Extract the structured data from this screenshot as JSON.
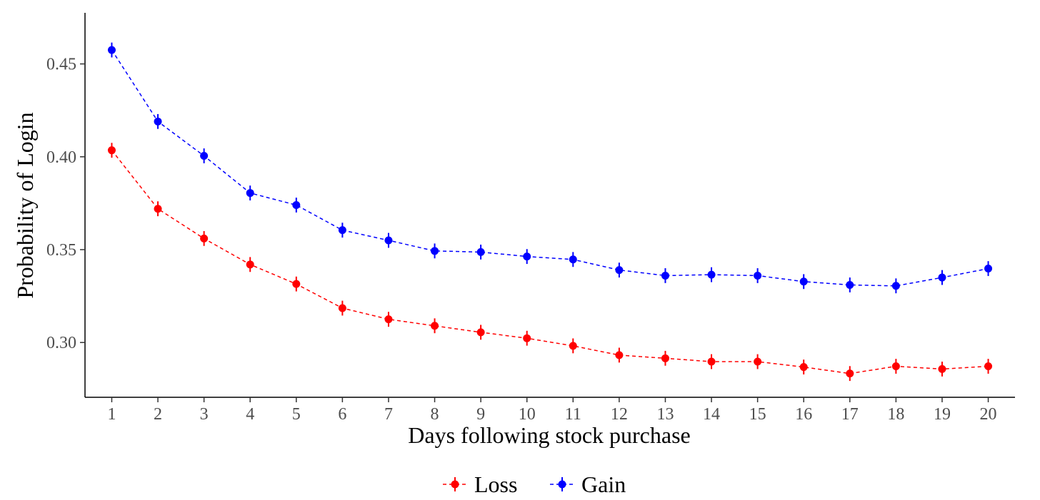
{
  "chart_data": {
    "type": "line",
    "title": "",
    "xlabel": "Days following stock purchase",
    "ylabel": "Probability of Login",
    "x": [
      1,
      2,
      3,
      4,
      5,
      6,
      7,
      8,
      9,
      10,
      11,
      12,
      13,
      14,
      15,
      16,
      17,
      18,
      19,
      20
    ],
    "x_ticks": [
      "1",
      "2",
      "3",
      "4",
      "5",
      "6",
      "7",
      "8",
      "9",
      "10",
      "11",
      "12",
      "13",
      "14",
      "15",
      "16",
      "17",
      "18",
      "19",
      "20"
    ],
    "y_ticks": [
      {
        "value": 0.3,
        "label": "0.30"
      },
      {
        "value": 0.35,
        "label": "0.35"
      },
      {
        "value": 0.4,
        "label": "0.40"
      },
      {
        "value": 0.45,
        "label": "0.45"
      }
    ],
    "xlim": [
      0.42,
      20.58
    ],
    "ylim": [
      0.2705,
      0.4775
    ],
    "grid": false,
    "legend_position": "bottom",
    "error_bar_halfwidth": 0.004,
    "series": [
      {
        "name": "Loss",
        "color": "#ff0000",
        "line_style": "dashed",
        "values": [
          0.4035,
          0.372,
          0.356,
          0.342,
          0.3315,
          0.3185,
          0.3125,
          0.309,
          0.3055,
          0.3023,
          0.2982,
          0.2932,
          0.2915,
          0.2897,
          0.2897,
          0.2868,
          0.2833,
          0.2872,
          0.2857,
          0.2872
        ]
      },
      {
        "name": "Gain",
        "color": "#0000ff",
        "line_style": "dashed",
        "values": [
          0.4575,
          0.419,
          0.4005,
          0.3805,
          0.374,
          0.3605,
          0.355,
          0.3493,
          0.3487,
          0.3463,
          0.3447,
          0.339,
          0.336,
          0.3365,
          0.336,
          0.3328,
          0.331,
          0.3305,
          0.335,
          0.3398
        ]
      }
    ]
  }
}
